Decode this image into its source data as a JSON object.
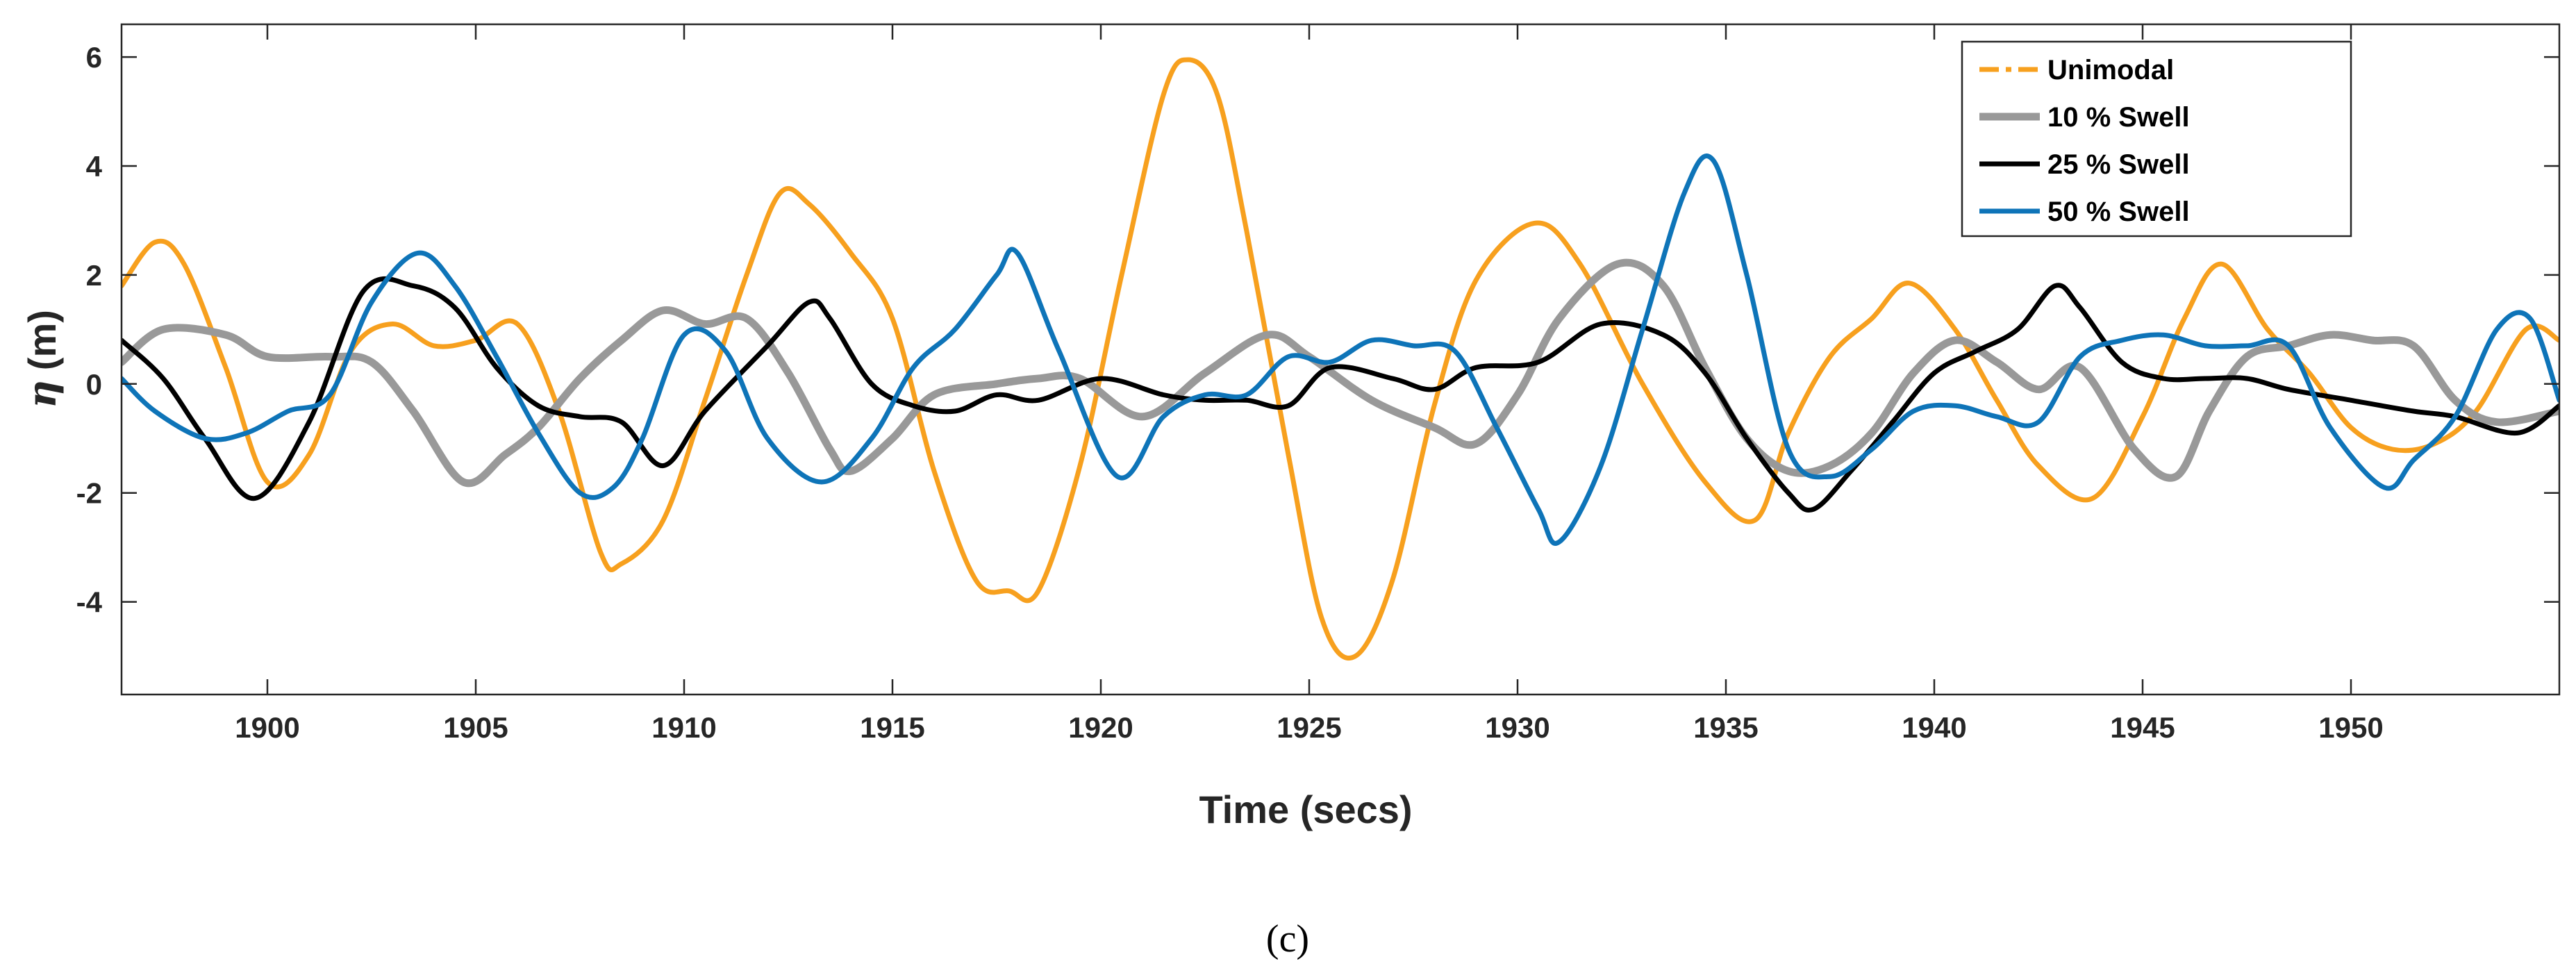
{
  "chart_data": {
    "type": "line",
    "title": "",
    "xlabel": "Time (secs)",
    "ylabel_symbol": "η",
    "ylabel_unit": "(m)",
    "caption": "(c)",
    "xlim": [
      1896.5,
      1955
    ],
    "ylim": [
      -5.7,
      6.6
    ],
    "xticks": [
      1900,
      1905,
      1910,
      1915,
      1920,
      1925,
      1930,
      1935,
      1940,
      1945,
      1950
    ],
    "yticks": [
      -4,
      -2,
      0,
      2,
      4,
      6
    ],
    "ytick_labels": [
      "-4",
      "-2",
      "0",
      "2",
      "4",
      "6"
    ],
    "legend_position": "top-right",
    "series": [
      {
        "name": "Unimodal",
        "color": "#F7A01E",
        "style": "dashdot",
        "x": [
          1896.5,
          1897.3,
          1898.0,
          1899.0,
          1900.0,
          1901.0,
          1902.0,
          1903.0,
          1904.0,
          1905.0,
          1906.0,
          1907.0,
          1908.0,
          1908.5,
          1909.5,
          1910.5,
          1911.5,
          1912.3,
          1913.0,
          1914.0,
          1915.0,
          1916.0,
          1917.0,
          1917.8,
          1918.5,
          1919.5,
          1920.5,
          1921.5,
          1922.1,
          1922.8,
          1923.5,
          1924.5,
          1925.3,
          1926.1,
          1927.0,
          1928.0,
          1929.0,
          1930.4,
          1931.5,
          1933.0,
          1934.5,
          1935.7,
          1936.5,
          1937.5,
          1938.5,
          1939.4,
          1940.5,
          1941.5,
          1942.5,
          1943.8,
          1945.0,
          1946.0,
          1946.9,
          1948.0,
          1949.0,
          1950.0,
          1951.0,
          1952.0,
          1953.0,
          1954.2,
          1955.0
        ],
        "y": [
          1.8,
          2.6,
          2.2,
          0.3,
          -1.8,
          -1.3,
          0.6,
          1.1,
          0.7,
          0.8,
          1.1,
          -0.5,
          -3.1,
          -3.3,
          -2.5,
          -0.3,
          2.0,
          3.5,
          3.3,
          2.4,
          1.2,
          -1.6,
          -3.6,
          -3.8,
          -3.8,
          -1.5,
          2.0,
          5.3,
          5.95,
          5.3,
          2.8,
          -1.3,
          -4.3,
          -5.0,
          -3.6,
          -0.4,
          1.9,
          2.95,
          2.2,
          0.0,
          -1.8,
          -2.5,
          -0.9,
          0.5,
          1.2,
          1.85,
          1.0,
          -0.3,
          -1.5,
          -2.1,
          -0.6,
          1.2,
          2.2,
          1.0,
          0.2,
          -0.8,
          -1.2,
          -1.1,
          -0.5,
          1.0,
          0.8
        ]
      },
      {
        "name": "10 % Swell",
        "color": "#999999",
        "style": "solid",
        "x": [
          1896.5,
          1897.5,
          1899.0,
          1900.0,
          1901.5,
          1902.5,
          1903.5,
          1904.7,
          1905.7,
          1906.5,
          1907.5,
          1908.5,
          1909.5,
          1910.5,
          1911.5,
          1912.5,
          1913.5,
          1914.0,
          1915.0,
          1916.0,
          1917.5,
          1918.5,
          1919.5,
          1921.0,
          1922.5,
          1924.0,
          1925.0,
          1926.5,
          1928.0,
          1929.0,
          1930.0,
          1931.0,
          1932.4,
          1933.5,
          1934.5,
          1935.5,
          1936.5,
          1937.5,
          1938.5,
          1939.5,
          1940.5,
          1941.5,
          1942.5,
          1943.5,
          1944.8,
          1945.8,
          1946.6,
          1947.5,
          1948.5,
          1949.5,
          1950.5,
          1951.5,
          1952.5,
          1953.5,
          1955.0
        ],
        "y": [
          0.4,
          1.0,
          0.9,
          0.5,
          0.5,
          0.4,
          -0.5,
          -1.8,
          -1.3,
          -0.8,
          0.1,
          0.8,
          1.35,
          1.1,
          1.2,
          0.2,
          -1.2,
          -1.6,
          -1.0,
          -0.2,
          0.0,
          0.1,
          0.1,
          -0.6,
          0.2,
          0.9,
          0.5,
          -0.3,
          -0.8,
          -1.1,
          -0.2,
          1.2,
          2.2,
          1.8,
          0.3,
          -1.0,
          -1.6,
          -1.5,
          -0.9,
          0.2,
          0.8,
          0.4,
          -0.1,
          0.3,
          -1.2,
          -1.7,
          -0.5,
          0.5,
          0.7,
          0.9,
          0.8,
          0.7,
          -0.3,
          -0.7,
          -0.5
        ]
      },
      {
        "name": "25 % Swell",
        "color": "#000000",
        "style": "solid",
        "x": [
          1896.5,
          1897.5,
          1898.5,
          1899.7,
          1901.0,
          1902.3,
          1903.5,
          1904.5,
          1905.5,
          1906.5,
          1907.5,
          1908.5,
          1909.5,
          1910.5,
          1912.0,
          1913.0,
          1913.5,
          1914.5,
          1915.5,
          1916.5,
          1917.5,
          1918.5,
          1920.0,
          1921.5,
          1922.5,
          1923.5,
          1924.5,
          1925.5,
          1927.0,
          1928.0,
          1929.0,
          1930.5,
          1932.0,
          1933.5,
          1934.5,
          1935.5,
          1936.5,
          1937.1,
          1938.0,
          1939.0,
          1940.0,
          1941.0,
          1942.0,
          1942.9,
          1943.5,
          1944.5,
          1945.5,
          1946.5,
          1947.5,
          1948.5,
          1950.0,
          1951.5,
          1952.5,
          1954.0,
          1955.0
        ],
        "y": [
          0.8,
          0.1,
          -1.0,
          -2.1,
          -0.7,
          1.7,
          1.8,
          1.4,
          0.3,
          -0.4,
          -0.6,
          -0.7,
          -1.5,
          -0.5,
          0.7,
          1.5,
          1.2,
          0.0,
          -0.4,
          -0.5,
          -0.2,
          -0.3,
          0.1,
          -0.2,
          -0.3,
          -0.3,
          -0.4,
          0.3,
          0.1,
          -0.1,
          0.3,
          0.4,
          1.1,
          0.9,
          0.2,
          -1.0,
          -2.0,
          -2.3,
          -1.6,
          -0.7,
          0.2,
          0.6,
          1.0,
          1.8,
          1.4,
          0.4,
          0.1,
          0.1,
          0.1,
          -0.1,
          -0.3,
          -0.5,
          -0.6,
          -0.9,
          -0.4
        ]
      },
      {
        "name": "50 % Swell",
        "color": "#0E74B8",
        "style": "solid",
        "x": [
          1896.5,
          1897.3,
          1898.5,
          1899.5,
          1900.5,
          1901.5,
          1902.5,
          1903.6,
          1904.5,
          1905.5,
          1906.5,
          1907.5,
          1908.3,
          1909.0,
          1910.0,
          1911.0,
          1912.0,
          1913.3,
          1914.5,
          1915.5,
          1916.5,
          1917.5,
          1918.0,
          1919.0,
          1920.4,
          1921.5,
          1922.5,
          1923.5,
          1924.5,
          1925.5,
          1926.5,
          1927.5,
          1928.5,
          1929.5,
          1930.5,
          1931.0,
          1932.0,
          1933.0,
          1934.0,
          1934.7,
          1935.5,
          1936.5,
          1937.5,
          1938.5,
          1939.5,
          1940.5,
          1941.5,
          1942.5,
          1943.5,
          1944.5,
          1945.5,
          1946.5,
          1947.5,
          1948.5,
          1949.5,
          1950.8,
          1951.5,
          1952.5,
          1953.5,
          1954.3,
          1955.0
        ],
        "y": [
          0.1,
          -0.5,
          -1.0,
          -0.9,
          -0.5,
          -0.2,
          1.5,
          2.4,
          1.8,
          0.5,
          -0.9,
          -2.0,
          -1.9,
          -1.0,
          0.9,
          0.6,
          -1.0,
          -1.8,
          -1.0,
          0.3,
          1.0,
          2.0,
          2.4,
          0.6,
          -1.7,
          -0.6,
          -0.2,
          -0.2,
          0.5,
          0.4,
          0.8,
          0.7,
          0.6,
          -0.8,
          -2.3,
          -2.9,
          -1.5,
          1.0,
          3.5,
          4.1,
          2.0,
          -1.2,
          -1.7,
          -1.2,
          -0.5,
          -0.4,
          -0.6,
          -0.7,
          0.5,
          0.8,
          0.9,
          0.7,
          0.7,
          0.7,
          -0.8,
          -1.9,
          -1.4,
          -0.6,
          1.0,
          1.2,
          -0.3
        ]
      }
    ]
  }
}
